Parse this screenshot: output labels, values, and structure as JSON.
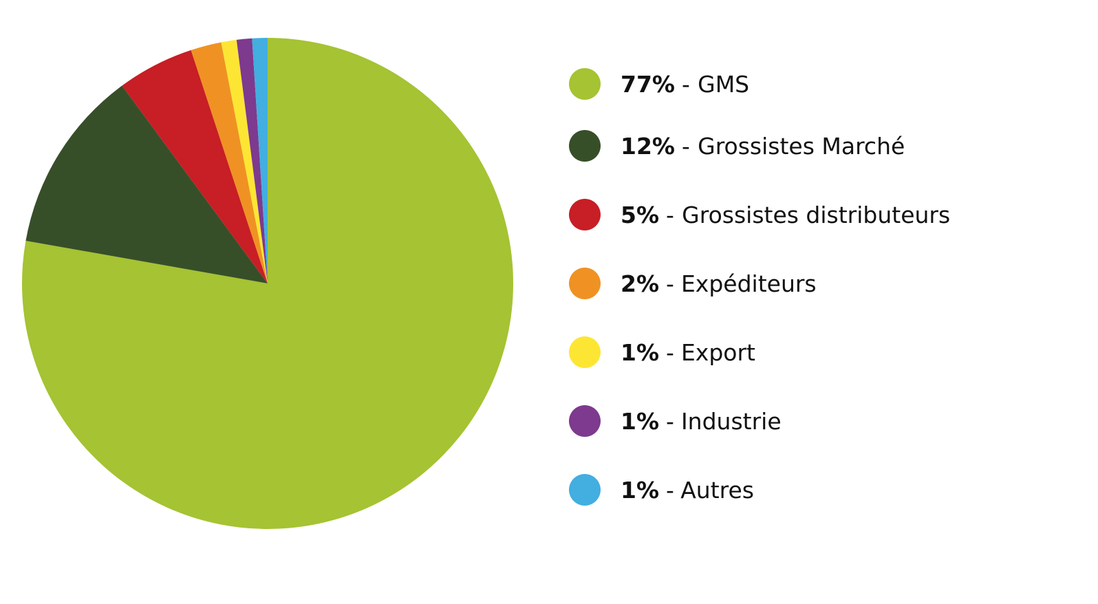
{
  "chart_data": {
    "type": "pie",
    "categories": [
      "GMS",
      "Grossistes Marché",
      "Grossistes distributeurs",
      "Expéditeurs",
      "Export",
      "Industrie",
      "Autres"
    ],
    "values": [
      77,
      12,
      5,
      2,
      1,
      1,
      1
    ],
    "value_labels": [
      "77%",
      "12%",
      "5%",
      "2%",
      "1%",
      "1%",
      "1%"
    ],
    "colors": [
      "#a5c332",
      "#374f28",
      "#c81e25",
      "#ef9223",
      "#fde633",
      "#7d3a8e",
      "#43aee0"
    ],
    "label_separator": "-",
    "legend": "right"
  }
}
